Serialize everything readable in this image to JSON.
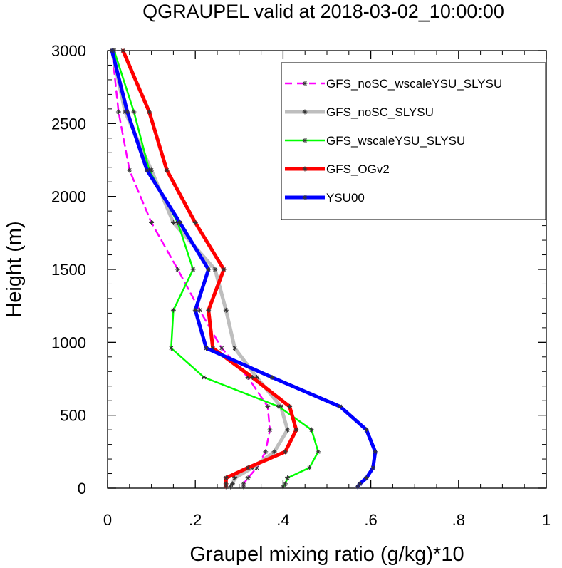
{
  "chart_data": {
    "type": "line",
    "title": "QGRAUPEL valid at 2018-03-02_10:00:00",
    "xlabel": "Graupel mixing ratio (g/kg)*10",
    "ylabel": "Height (m)",
    "xlim": [
      0,
      1
    ],
    "ylim": [
      0,
      3000
    ],
    "x_ticks": [
      {
        "value": 0,
        "label": "0"
      },
      {
        "value": 0.2,
        "label": ".2"
      },
      {
        "value": 0.4,
        "label": ".4"
      },
      {
        "value": 0.6,
        "label": ".6"
      },
      {
        "value": 0.8,
        "label": ".8"
      },
      {
        "value": 1,
        "label": "1"
      }
    ],
    "y_ticks": [
      {
        "value": 0,
        "label": "0"
      },
      {
        "value": 500,
        "label": "500"
      },
      {
        "value": 1000,
        "label": "1000"
      },
      {
        "value": 1500,
        "label": "1500"
      },
      {
        "value": 2000,
        "label": "2000"
      },
      {
        "value": 2500,
        "label": "2500"
      },
      {
        "value": 3000,
        "label": "3000"
      }
    ],
    "grid": false,
    "legend_position": "top-right",
    "marker": "asterisk",
    "series": [
      {
        "name": "GFS_noSC_wscaleYSU_SLYSU",
        "color": "#ff00ff",
        "dashed": true,
        "thick": false,
        "points": [
          [
            0.31,
            10
          ],
          [
            0.31,
            30
          ],
          [
            0.32,
            70
          ],
          [
            0.34,
            140
          ],
          [
            0.36,
            250
          ],
          [
            0.37,
            400
          ],
          [
            0.365,
            560
          ],
          [
            0.32,
            760
          ],
          [
            0.26,
            960
          ],
          [
            0.21,
            1220
          ],
          [
            0.16,
            1500
          ],
          [
            0.1,
            1820
          ],
          [
            0.05,
            2180
          ],
          [
            0.025,
            2580
          ],
          [
            0.01,
            3000
          ]
        ]
      },
      {
        "name": "GFS_noSC_SLYSU",
        "color": "#bebebe",
        "dashed": false,
        "thick": true,
        "points": [
          [
            0.28,
            10
          ],
          [
            0.285,
            30
          ],
          [
            0.29,
            70
          ],
          [
            0.33,
            140
          ],
          [
            0.38,
            250
          ],
          [
            0.41,
            400
          ],
          [
            0.395,
            560
          ],
          [
            0.34,
            760
          ],
          [
            0.29,
            960
          ],
          [
            0.27,
            1220
          ],
          [
            0.245,
            1500
          ],
          [
            0.15,
            1820
          ],
          [
            0.1,
            2180
          ],
          [
            0.04,
            2580
          ],
          [
            0.01,
            3000
          ]
        ]
      },
      {
        "name": "GFS_wscaleYSU_SLYSU",
        "color": "#00ff00",
        "dashed": false,
        "thick": false,
        "points": [
          [
            0.4,
            10
          ],
          [
            0.405,
            30
          ],
          [
            0.41,
            70
          ],
          [
            0.46,
            140
          ],
          [
            0.48,
            250
          ],
          [
            0.465,
            400
          ],
          [
            0.39,
            560
          ],
          [
            0.22,
            760
          ],
          [
            0.145,
            960
          ],
          [
            0.15,
            1220
          ],
          [
            0.195,
            1500
          ],
          [
            0.16,
            1820
          ],
          [
            0.095,
            2180
          ],
          [
            0.06,
            2580
          ],
          [
            0.015,
            3000
          ]
        ]
      },
      {
        "name": "GFS_OGv2",
        "color": "#ff0000",
        "dashed": false,
        "thick": true,
        "points": [
          [
            0.27,
            10
          ],
          [
            0.27,
            30
          ],
          [
            0.27,
            70
          ],
          [
            0.32,
            140
          ],
          [
            0.405,
            250
          ],
          [
            0.43,
            400
          ],
          [
            0.415,
            560
          ],
          [
            0.33,
            760
          ],
          [
            0.24,
            960
          ],
          [
            0.23,
            1220
          ],
          [
            0.265,
            1500
          ],
          [
            0.2,
            1820
          ],
          [
            0.135,
            2180
          ],
          [
            0.095,
            2580
          ],
          [
            0.035,
            3000
          ]
        ]
      },
      {
        "name": "YSU00",
        "color": "#0000ff",
        "dashed": false,
        "thick": true,
        "points": [
          [
            0.57,
            10
          ],
          [
            0.575,
            30
          ],
          [
            0.59,
            70
          ],
          [
            0.605,
            140
          ],
          [
            0.61,
            250
          ],
          [
            0.59,
            400
          ],
          [
            0.53,
            560
          ],
          [
            0.375,
            760
          ],
          [
            0.225,
            960
          ],
          [
            0.2,
            1220
          ],
          [
            0.23,
            1500
          ],
          [
            0.165,
            1820
          ],
          [
            0.09,
            2180
          ],
          [
            0.045,
            2580
          ],
          [
            0.01,
            3000
          ]
        ]
      }
    ]
  }
}
